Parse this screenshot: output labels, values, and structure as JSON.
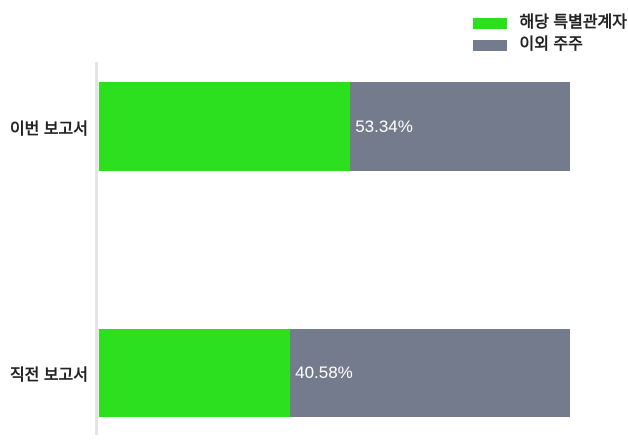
{
  "chart_data": {
    "type": "bar",
    "orientation": "horizontal",
    "stacked": true,
    "title": "",
    "xlabel": "",
    "ylabel": "",
    "xlim": [
      0,
      100
    ],
    "grid": false,
    "legend_position": "top-right",
    "categories": [
      "이번 보고서",
      "직전 보고서"
    ],
    "series": [
      {
        "name": "해당 특별관계자",
        "color": "#2ce01f",
        "values": [
          53.34,
          40.58
        ]
      },
      {
        "name": "이외 주주",
        "color": "#747b8d",
        "values": [
          46.66,
          59.42
        ]
      }
    ],
    "value_labels": [
      "53.34%",
      "40.58%"
    ],
    "value_label_color": "#ffffff"
  },
  "colors": {
    "green": "#2ce01f",
    "gray": "#747b8d",
    "axis_line": "#e3e3e3",
    "label_text": "#222222"
  },
  "icons": {
    "legend_swatch_green": "legend-swatch-green",
    "legend_swatch_gray": "legend-swatch-gray"
  }
}
